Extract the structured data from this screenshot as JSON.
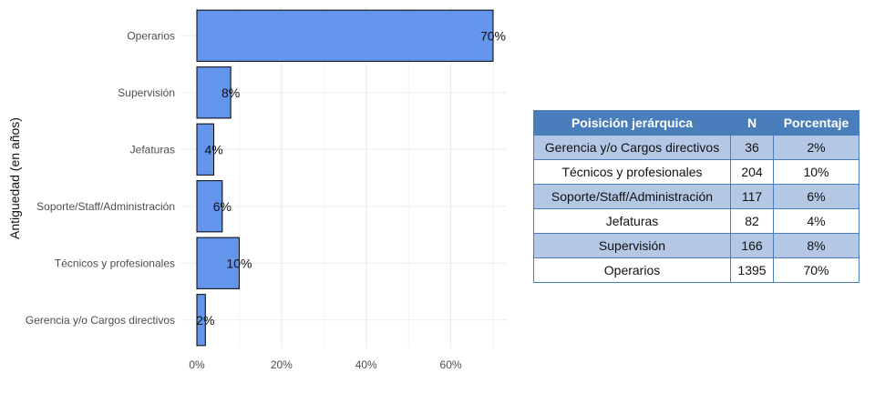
{
  "chart_data": {
    "type": "bar",
    "orientation": "horizontal",
    "categories": [
      "Operarios",
      "Supervisión",
      "Jefaturas",
      "Soporte/Staff/Administración",
      "Técnicos y profesionales",
      "Gerencia y/o Cargos directivos"
    ],
    "values": [
      70,
      8,
      4,
      6,
      10,
      2
    ],
    "data_labels": [
      "70%",
      "8%",
      "4%",
      "6%",
      "10%",
      "2%"
    ],
    "xlim": [
      0,
      70
    ],
    "x_ticks": [
      0,
      20,
      40,
      60
    ],
    "x_tick_labels": [
      "0%",
      "20%",
      "40%",
      "60%"
    ],
    "ylabel": "Antiguedad (en años)",
    "xlabel": "",
    "title": "",
    "grid": true,
    "bar_color": "#6495ed",
    "bar_edge_color": "#000000",
    "grid_color": "#ebebeb"
  },
  "table": {
    "headers": [
      "Poisición jerárquica",
      "N",
      "Porcentaje"
    ],
    "rows": [
      [
        "Gerencia y/o Cargos directivos",
        "36",
        "2%"
      ],
      [
        "Técnicos y profesionales",
        "204",
        "10%"
      ],
      [
        "Soporte/Staff/Administración",
        "117",
        "6%"
      ],
      [
        "Jefaturas",
        "82",
        "4%"
      ],
      [
        "Supervisión",
        "166",
        "8%"
      ],
      [
        "Operarios",
        "1395",
        "70%"
      ]
    ],
    "header_color": "#4a7ebb",
    "stripe_color": "#b4c8e6"
  }
}
